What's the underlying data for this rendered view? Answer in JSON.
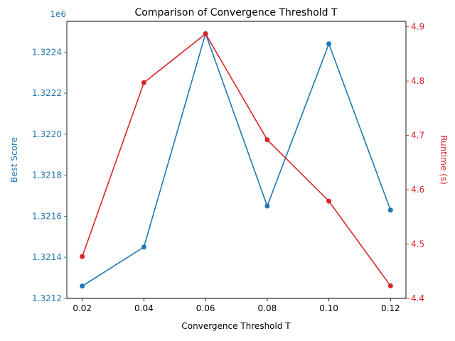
{
  "chart_data": {
    "type": "line",
    "title": "Comparison of Convergence Threshold T",
    "xlabel": "Convergence Threshold T",
    "x": [
      0.02,
      0.04,
      0.06,
      0.08,
      0.1,
      0.12
    ],
    "x_ticks": [
      "0.02",
      "0.04",
      "0.06",
      "0.08",
      "0.10",
      "0.12"
    ],
    "xlim": [
      0.015,
      0.125
    ],
    "grid": false,
    "legend": "none",
    "left_axis": {
      "label": "Best Score",
      "offset_label": "1e6",
      "color": "#1f77b4",
      "ylim": [
        1.3212,
        1.32255
      ],
      "ticks": [
        1.3212,
        1.3214,
        1.3216,
        1.3218,
        1.322,
        1.3222,
        1.3224
      ],
      "tick_labels": [
        "1.3212",
        "1.3214",
        "1.3216",
        "1.3218",
        "1.3220",
        "1.3222",
        "1.3224"
      ]
    },
    "right_axis": {
      "label": "Runtime (s)",
      "color": "#d62728",
      "ylim": [
        4.4,
        4.91
      ],
      "ticks": [
        4.4,
        4.5,
        4.6,
        4.7,
        4.8,
        4.9
      ],
      "tick_labels": [
        "4.4",
        "4.5",
        "4.6",
        "4.7",
        "4.8",
        "4.9"
      ]
    },
    "series": [
      {
        "axis": "left",
        "color": "#1f77b4",
        "marker": "circle",
        "values": [
          1.32126,
          1.32145,
          1.32249,
          1.32165,
          1.32244,
          1.32163
        ]
      },
      {
        "axis": "right",
        "color": "#d62728",
        "marker": "circle",
        "values": [
          4.477,
          4.797,
          4.887,
          4.692,
          4.579,
          4.423
        ]
      }
    ]
  }
}
